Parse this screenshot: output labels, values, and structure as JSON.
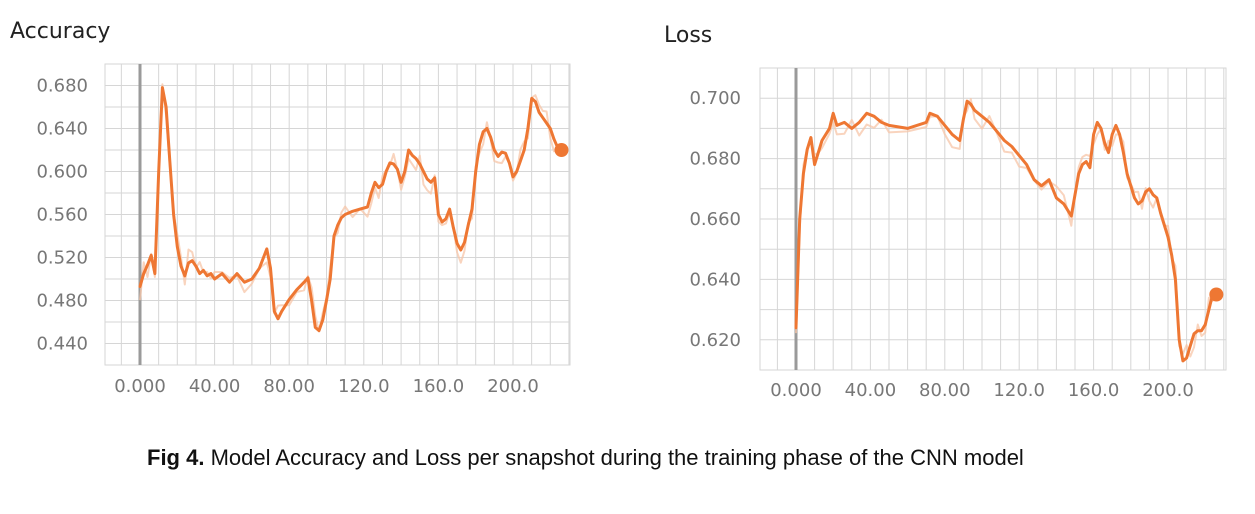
{
  "caption": {
    "label": "Fig 4.",
    "text": " Model Accuracy and Loss per snapshot during the training phase of the CNN model"
  },
  "colors": {
    "line": "#ee7733",
    "line_raw": "#f7c6a8",
    "grid": "#d6d6d6",
    "axis_marker": "#9a9a9a",
    "tick_text": "#777777"
  },
  "chart_data": [
    {
      "type": "line",
      "title": "Accuracy",
      "xlabel": "",
      "ylabel": "",
      "xlim": [
        -25,
        240
      ],
      "ylim": [
        0.42,
        0.7
      ],
      "x_ticks": [
        0,
        40,
        80,
        120,
        160,
        200
      ],
      "x_tick_labels": [
        "0.000",
        "40.00",
        "80.00",
        "120.0",
        "160.0",
        "200.0"
      ],
      "y_ticks": [
        0.44,
        0.48,
        0.52,
        0.56,
        0.6,
        0.64,
        0.68
      ],
      "y_tick_labels": [
        "0.440",
        "0.480",
        "0.520",
        "0.560",
        "0.600",
        "0.640",
        "0.680"
      ],
      "grid": true,
      "series": [
        {
          "x": [
            0,
            2,
            4,
            6,
            8,
            10,
            12,
            14,
            16,
            18,
            20,
            22,
            24,
            26,
            28,
            30,
            32,
            34,
            36,
            38,
            40,
            44,
            48,
            52,
            56,
            60,
            64,
            68,
            70,
            72,
            74,
            76,
            80,
            84,
            88,
            90,
            92,
            94,
            96,
            98,
            100,
            102,
            104,
            106,
            108,
            110,
            114,
            118,
            122,
            124,
            126,
            128,
            130,
            132,
            134,
            136,
            138,
            140,
            142,
            144,
            146,
            148,
            150,
            152,
            154,
            156,
            158,
            160,
            162,
            164,
            166,
            168,
            170,
            172,
            174,
            176,
            178,
            180,
            182,
            184,
            186,
            188,
            190,
            192,
            194,
            196,
            198,
            200,
            202,
            204,
            206,
            208,
            210,
            212,
            214,
            216,
            218,
            220,
            222,
            224,
            226
          ],
          "y": [
            0.493,
            0.505,
            0.513,
            0.522,
            0.505,
            0.6,
            0.678,
            0.66,
            0.61,
            0.56,
            0.53,
            0.512,
            0.503,
            0.515,
            0.517,
            0.512,
            0.505,
            0.508,
            0.503,
            0.505,
            0.5,
            0.505,
            0.497,
            0.505,
            0.497,
            0.5,
            0.51,
            0.528,
            0.51,
            0.47,
            0.463,
            0.47,
            0.481,
            0.49,
            0.497,
            0.501,
            0.48,
            0.455,
            0.452,
            0.462,
            0.48,
            0.5,
            0.54,
            0.55,
            0.557,
            0.56,
            0.563,
            0.565,
            0.567,
            0.58,
            0.59,
            0.585,
            0.588,
            0.6,
            0.608,
            0.607,
            0.602,
            0.59,
            0.6,
            0.62,
            0.615,
            0.612,
            0.607,
            0.6,
            0.593,
            0.59,
            0.594,
            0.56,
            0.553,
            0.556,
            0.565,
            0.548,
            0.533,
            0.527,
            0.534,
            0.55,
            0.565,
            0.6,
            0.625,
            0.637,
            0.64,
            0.632,
            0.62,
            0.614,
            0.618,
            0.617,
            0.608,
            0.595,
            0.6,
            0.61,
            0.62,
            0.64,
            0.668,
            0.665,
            0.655,
            0.65,
            0.645,
            0.64,
            0.63,
            0.622,
            0.62
          ]
        }
      ]
    },
    {
      "type": "line",
      "title": "Loss",
      "xlabel": "",
      "ylabel": "",
      "xlim": [
        -25,
        240
      ],
      "ylim": [
        0.61,
        0.71
      ],
      "x_ticks": [
        0,
        40,
        80,
        120,
        160,
        200
      ],
      "x_tick_labels": [
        "0.000",
        "40.00",
        "80.00",
        "120.0",
        "160.0",
        "200.0"
      ],
      "y_ticks": [
        0.62,
        0.64,
        0.66,
        0.68,
        0.7
      ],
      "y_tick_labels": [
        "0.620",
        "0.640",
        "0.660",
        "0.680",
        "0.700"
      ],
      "grid": true,
      "series": [
        {
          "x": [
            0,
            2,
            4,
            6,
            8,
            10,
            12,
            14,
            18,
            20,
            22,
            26,
            30,
            34,
            38,
            42,
            46,
            50,
            60,
            70,
            72,
            76,
            80,
            84,
            88,
            90,
            92,
            94,
            96,
            100,
            104,
            108,
            112,
            116,
            120,
            124,
            128,
            132,
            136,
            140,
            144,
            148,
            150,
            152,
            154,
            156,
            158,
            160,
            162,
            164,
            166,
            168,
            170,
            172,
            174,
            176,
            178,
            180,
            182,
            184,
            186,
            188,
            190,
            192,
            194,
            196,
            198,
            200,
            202,
            204,
            206,
            208,
            210,
            212,
            214,
            216,
            218,
            220,
            222,
            224,
            226
          ],
          "y": [
            0.624,
            0.66,
            0.675,
            0.683,
            0.687,
            0.678,
            0.682,
            0.686,
            0.69,
            0.695,
            0.691,
            0.692,
            0.69,
            0.692,
            0.695,
            0.694,
            0.692,
            0.691,
            0.69,
            0.692,
            0.695,
            0.694,
            0.691,
            0.688,
            0.686,
            0.693,
            0.699,
            0.698,
            0.696,
            0.694,
            0.692,
            0.689,
            0.686,
            0.684,
            0.681,
            0.678,
            0.673,
            0.671,
            0.673,
            0.667,
            0.665,
            0.661,
            0.668,
            0.675,
            0.678,
            0.679,
            0.677,
            0.688,
            0.692,
            0.69,
            0.685,
            0.682,
            0.688,
            0.691,
            0.688,
            0.682,
            0.675,
            0.671,
            0.667,
            0.665,
            0.666,
            0.669,
            0.67,
            0.668,
            0.667,
            0.662,
            0.658,
            0.654,
            0.648,
            0.64,
            0.62,
            0.613,
            0.614,
            0.618,
            0.622,
            0.623,
            0.623,
            0.625,
            0.63,
            0.635,
            0.635
          ]
        }
      ]
    }
  ]
}
